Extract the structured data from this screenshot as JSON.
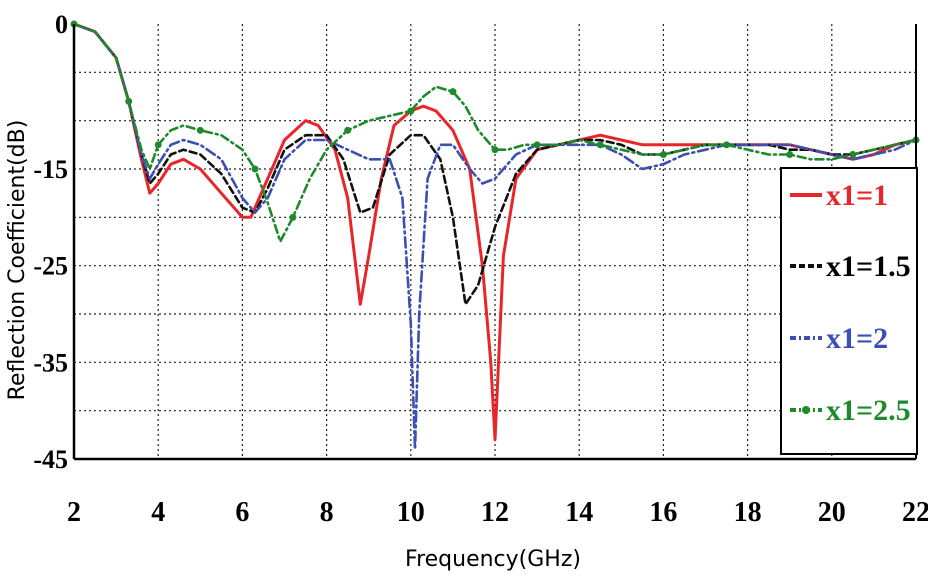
{
  "chart_data": {
    "type": "line",
    "title": "",
    "xlabel": "Frequency(GHz)",
    "ylabel": "Reflection Coefficient(dB)",
    "xlim": [
      2,
      22
    ],
    "ylim": [
      -45,
      0
    ],
    "xticks": [
      2,
      4,
      6,
      8,
      10,
      12,
      14,
      16,
      18,
      20,
      22
    ],
    "yticks": [
      0,
      -15,
      -25,
      -35,
      -45
    ],
    "gridlines_y": [
      -5,
      -10,
      -15,
      -20,
      -25,
      -30,
      -35,
      -40
    ],
    "grid": true,
    "legend_position": "right",
    "series": [
      {
        "name": "x1=1",
        "color": "#e8262a",
        "style": "solid",
        "x": [
          2,
          2.5,
          3,
          3.3,
          3.6,
          3.8,
          4.0,
          4.3,
          4.6,
          5.0,
          5.5,
          6.0,
          6.2,
          6.5,
          7.0,
          7.5,
          7.8,
          8.2,
          8.5,
          8.8,
          9.0,
          9.3,
          9.6,
          10.0,
          10.3,
          10.6,
          11.0,
          11.4,
          11.7,
          11.9,
          12.0,
          12.2,
          12.5,
          13.0,
          13.5,
          14.0,
          14.5,
          15.0,
          15.5,
          16.0,
          16.5,
          17.0,
          17.5,
          18.0,
          18.5,
          19.0,
          19.5,
          20.0,
          20.5,
          21.0,
          21.5,
          22.0
        ],
        "y": [
          0,
          -0.8,
          -3.5,
          -8,
          -14,
          -17.5,
          -16.5,
          -14.5,
          -14,
          -15,
          -17.5,
          -20,
          -20,
          -17,
          -12,
          -10,
          -10.5,
          -13,
          -18,
          -29,
          -24,
          -16,
          -10.5,
          -9,
          -8.5,
          -9,
          -11,
          -15,
          -25,
          -35,
          -43,
          -24,
          -16,
          -13,
          -12.5,
          -12,
          -11.5,
          -12,
          -12.5,
          -12.5,
          -12.5,
          -12.5,
          -12.5,
          -12.5,
          -12.5,
          -12.5,
          -13,
          -13.5,
          -14,
          -13.5,
          -12.5,
          -12
        ]
      },
      {
        "name": "x1=1.5",
        "color": "#111111",
        "style": "dashed",
        "x": [
          2,
          2.5,
          3,
          3.3,
          3.6,
          3.8,
          4.0,
          4.3,
          4.6,
          5.0,
          5.5,
          6.0,
          6.3,
          6.6,
          7.0,
          7.5,
          8.0,
          8.4,
          8.8,
          9.1,
          9.5,
          10.0,
          10.3,
          10.7,
          11.0,
          11.3,
          11.6,
          12.0,
          12.5,
          13.0,
          13.5,
          14.0,
          14.5,
          15.0,
          15.5,
          16.0,
          16.5,
          17.0,
          17.5,
          18.0,
          18.5,
          19.0,
          19.5,
          20.0,
          20.5,
          21.0,
          21.5,
          22.0
        ],
        "y": [
          0,
          -0.8,
          -3.5,
          -8,
          -13.5,
          -16.5,
          -15.5,
          -13.5,
          -13,
          -13.5,
          -15.5,
          -19,
          -19.5,
          -17,
          -13,
          -11.5,
          -11.5,
          -14,
          -19.5,
          -19,
          -13.5,
          -11.5,
          -11.5,
          -14,
          -20,
          -29,
          -27,
          -21,
          -15.5,
          -13,
          -12.5,
          -12,
          -12,
          -12.5,
          -13.5,
          -13.5,
          -13,
          -12.5,
          -12.5,
          -12.5,
          -12.5,
          -13,
          -13,
          -13.5,
          -13.5,
          -13,
          -12.5,
          -12
        ]
      },
      {
        "name": "x1=2",
        "color": "#3b4fb5",
        "style": "dashdot",
        "x": [
          2,
          2.5,
          3,
          3.3,
          3.6,
          3.8,
          4.0,
          4.3,
          4.6,
          5.0,
          5.5,
          6.0,
          6.3,
          6.6,
          7.0,
          7.5,
          8.0,
          8.5,
          9.0,
          9.5,
          9.8,
          10.0,
          10.1,
          10.2,
          10.4,
          10.7,
          11.0,
          11.4,
          11.7,
          12.0,
          12.5,
          13.0,
          13.5,
          14.0,
          14.5,
          15.0,
          15.5,
          16.0,
          16.5,
          17.0,
          17.5,
          18.0,
          18.5,
          19.0,
          19.5,
          20.0,
          20.5,
          21.0,
          21.5,
          22.0
        ],
        "y": [
          0,
          -0.8,
          -3.5,
          -8,
          -13.5,
          -16,
          -14.5,
          -12.5,
          -12,
          -12.5,
          -14,
          -18,
          -19.5,
          -18,
          -14,
          -12,
          -12,
          -13,
          -14,
          -14,
          -18,
          -31,
          -44,
          -30,
          -16,
          -12.5,
          -12.5,
          -15,
          -16.5,
          -16,
          -13.5,
          -12.5,
          -12.5,
          -12.5,
          -12.5,
          -13.5,
          -15,
          -14.5,
          -13.5,
          -13,
          -12.5,
          -12.5,
          -12.5,
          -12.5,
          -13,
          -13.5,
          -14,
          -13.5,
          -13,
          -12
        ]
      },
      {
        "name": "x1=2.5",
        "color": "#1e8a2c",
        "style": "dashdot-marker",
        "x": [
          2,
          2.5,
          3,
          3.3,
          3.6,
          3.8,
          4.0,
          4.3,
          4.6,
          5.0,
          5.5,
          6.0,
          6.3,
          6.6,
          6.9,
          7.2,
          7.6,
          8.0,
          8.5,
          9.0,
          9.5,
          10.0,
          10.3,
          10.6,
          11.0,
          11.3,
          11.6,
          12.0,
          12.3,
          12.7,
          13.0,
          13.5,
          14.0,
          14.5,
          15.0,
          15.5,
          16.0,
          16.5,
          17.0,
          17.5,
          18.0,
          18.5,
          19.0,
          19.5,
          20.0,
          20.5,
          21.0,
          21.5,
          22.0
        ],
        "y": [
          0,
          -0.8,
          -3.5,
          -8,
          -13,
          -15,
          -12.5,
          -11,
          -10.5,
          -11,
          -11.5,
          -13,
          -15,
          -18.5,
          -22.5,
          -20,
          -16,
          -13,
          -11,
          -10,
          -9.5,
          -9,
          -7.5,
          -6.5,
          -7,
          -8.5,
          -11,
          -13,
          -13,
          -12.5,
          -12.5,
          -12.5,
          -12,
          -12.5,
          -13,
          -13.5,
          -13.5,
          -13,
          -12.5,
          -12.5,
          -13,
          -13.5,
          -13.5,
          -14,
          -14,
          -13.5,
          -13,
          -12.5,
          -12
        ]
      }
    ]
  }
}
